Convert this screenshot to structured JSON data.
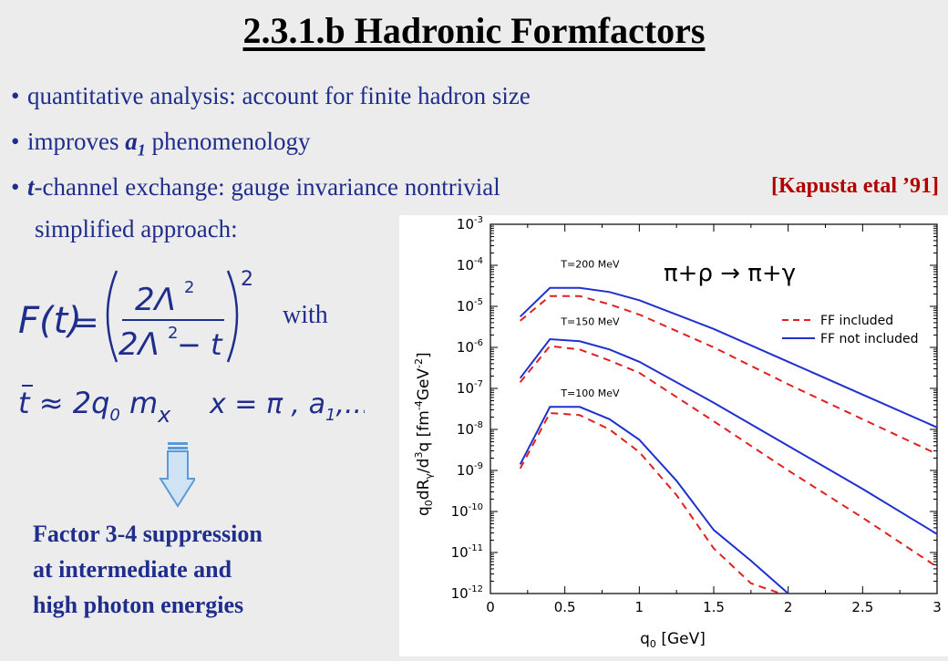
{
  "slide": {
    "title": "2.3.1.b Hadronic Formfactors",
    "bullets": [
      "quantitative analysis:  account for finite hadron size",
      "improves ",
      "-channel exchange: gauge invariance nontrivial"
    ],
    "bullet2_sym": "a",
    "bullet2_sub": "1",
    "bullet2_tail": " phenomenology",
    "bullet3_sym": "t",
    "citation": "[Kapusta etal ’91]",
    "simplified": "simplified approach:",
    "with": "with",
    "formula": {
      "lhs": "F(t)",
      "eq": "=",
      "num": "2Λ",
      "num_exp": "2",
      "den": "2Λ",
      "den_exp": "2",
      "den_tail": " − t",
      "outer_exp": "2",
      "tbar_line": "t ≈ 2q",
      "tbar_sub0": "0",
      "mx": " m",
      "mx_sub": "x",
      "xdef": "x = π , a",
      "xdef_sub": "1",
      "xdef_tail": ",..."
    },
    "summary": [
      "Factor 3-4 suppression",
      "at intermediate and",
      "high photon energies"
    ]
  },
  "chart_data": {
    "type": "line",
    "title": "π+ρ  → π+γ",
    "xlabel": "q0 [GeV]",
    "ylabel": "q0dRγ/d3q [fm-4GeV-2]",
    "xlim": [
      0,
      3
    ],
    "ylim_log10": [
      -12,
      -3
    ],
    "x_ticks": [
      "0",
      "0.5",
      "1",
      "1.5",
      "2",
      "2.5",
      "3"
    ],
    "y_ticks": [
      "10-3",
      "10-4",
      "10-5",
      "10-6",
      "10-7",
      "10-8",
      "10-9",
      "10-10",
      "10-11",
      "10-12"
    ],
    "legend": [
      {
        "name": "FF included",
        "color": "#e02020",
        "dash": true
      },
      {
        "name": "FF not included",
        "color": "#2030d0",
        "dash": false
      }
    ],
    "temperature_labels": [
      "T=200 MeV",
      "T=150 MeV",
      "T=100 MeV"
    ],
    "series": [
      {
        "name": "T=200 MeV FF not included",
        "color": "#2030d0",
        "dash": false,
        "x": [
          0.2,
          0.4,
          0.6,
          0.8,
          1.0,
          1.5,
          2.0,
          2.5,
          3.0
        ],
        "log10y": [
          -5.25,
          -4.55,
          -4.55,
          -4.65,
          -4.85,
          -5.55,
          -6.35,
          -7.15,
          -7.95
        ]
      },
      {
        "name": "T=200 MeV FF included",
        "color": "#e02020",
        "dash": true,
        "x": [
          0.2,
          0.4,
          0.6,
          0.8,
          1.0,
          1.5,
          2.0,
          2.5,
          3.0
        ],
        "log10y": [
          -5.35,
          -4.75,
          -4.75,
          -4.95,
          -5.2,
          -6.0,
          -6.9,
          -7.75,
          -8.6
        ]
      },
      {
        "name": "T=150 MeV FF not included",
        "color": "#2030d0",
        "dash": false,
        "x": [
          0.2,
          0.4,
          0.6,
          0.8,
          1.0,
          1.5,
          2.0,
          2.5,
          3.0
        ],
        "log10y": [
          -6.75,
          -5.8,
          -5.85,
          -6.05,
          -6.35,
          -7.35,
          -8.4,
          -9.45,
          -10.55
        ]
      },
      {
        "name": "T=150 MeV FF included",
        "color": "#e02020",
        "dash": true,
        "x": [
          0.2,
          0.4,
          0.6,
          0.8,
          1.0,
          1.5,
          2.0,
          2.5,
          3.0
        ],
        "log10y": [
          -6.85,
          -5.97,
          -6.05,
          -6.32,
          -6.62,
          -7.8,
          -9.0,
          -10.15,
          -11.35
        ]
      },
      {
        "name": "T=100 MeV FF not included",
        "color": "#2030d0",
        "dash": false,
        "x": [
          0.2,
          0.4,
          0.6,
          0.8,
          1.0,
          1.25,
          1.5,
          1.75,
          2.0
        ],
        "log10y": [
          -8.85,
          -7.45,
          -7.45,
          -7.75,
          -8.25,
          -9.25,
          -10.45,
          -11.2,
          -12.0
        ]
      },
      {
        "name": "T=100 MeV FF included",
        "color": "#e02020",
        "dash": true,
        "x": [
          0.2,
          0.4,
          0.6,
          0.8,
          1.0,
          1.25,
          1.5,
          1.75,
          1.95
        ],
        "log10y": [
          -8.95,
          -7.6,
          -7.65,
          -8.0,
          -8.55,
          -9.6,
          -10.9,
          -11.75,
          -12.0
        ]
      }
    ]
  }
}
